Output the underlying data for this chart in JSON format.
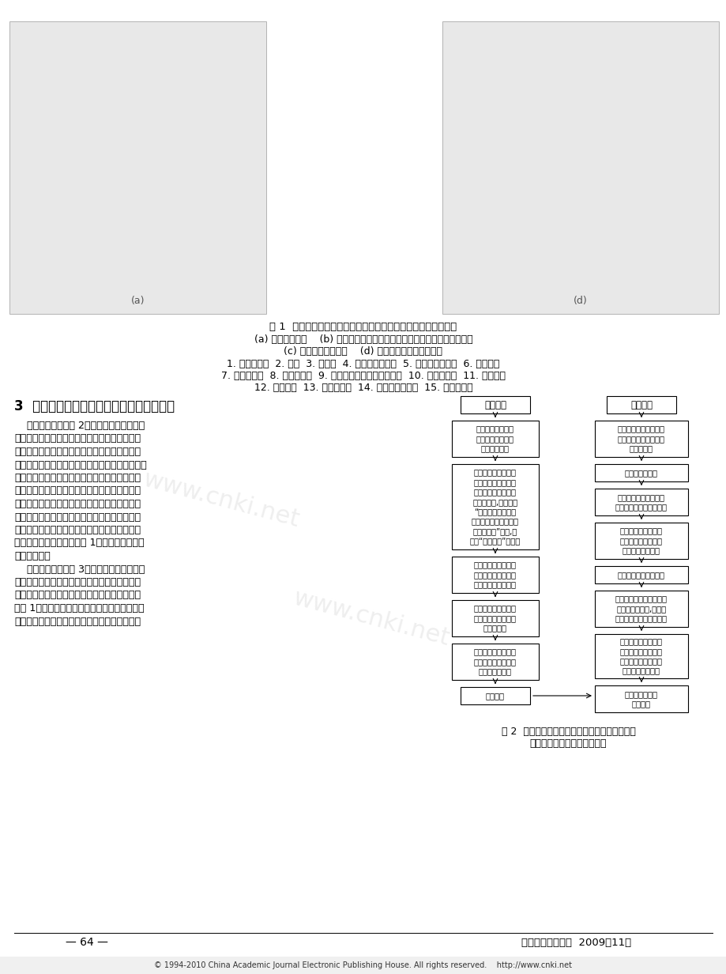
{
  "page_bg": "#ffffff",
  "title_fig1": "图 1  单侧巷道外置井道分层搞运滚道并排存放型机械式停车系统",
  "subtitle_a": "(a) 停车系统总图    (b) 托放滚道和车辆分隔定位横移取送装置侧视和俦视图",
  "subtitle_cd": "(c) 纵移搞运器侧视图    (d) 升降搞运器侧视和前视图",
  "legend_line": "1. 仓储式库架  2. 巷道  3. 存车区  4. 前车轮托放滚道  5. 后车轮托放滚道  6. 外置井道",
  "legend_line2": "7. 升降搞运器  8. 车辆出入口  9. 车辆分隔定位横移取送装置  10. 纵移搞运器  11. 停放车辆",
  "legend_line3": "12. 等待车位  13. 定位作动杆  14. 车门保护限制杆  15. 被输送车辆",
  "section3_title": "3  分层搞运滚道存放型停车系统的运行控制",
  "para1_lines": [
    "    车辆入库流程如图 2所示。待存放车辆直接",
    "驶入停车系统任一外置井道内的升降搞运器上或",
    "者相邻的等待车位上（再由升降搞运器内的车辆",
    "分隔定位横移取送装置横向拉入），升降搞运器将",
    "该存放车辆输送至停放层并通过车辆分隔定位横",
    "移取送装置交给该层的纵移搞运器，由纵移搞运",
    "器移至已确定的存车区，存车区内的车辆分隔定",
    "位横移取送装置将存放车辆横向拉到存车区托放",
    "滚道上最靠近巷道的位置停放，该存车区上原停",
    "放的其他车辆同时均被横移 1个车位（远离巷道",
    "方向）停放。",
    "    车辆出库流程如图 3所示。需取出车辆由本",
    "存车区内的车辆分隔定位横移取送装置推到纵移",
    "搞运器上，该存车区原停放的其他车辆同时均被",
    "横移 1个车位（靠近巷道方向）停放，纵移搞运",
    "器移至就近的外置井道，其升降搞运器内的车辆"
  ],
  "fig2_title": "图 2  单侧巷道外置井道分层搞运滚道并排存放型",
  "fig2_subtitle": "机械式停车系统存车运行流程",
  "page_num": "— 64 —",
  "journal": "《起重运输机械》  2009（11）",
  "copyright": "© 1994-2010 China Academic Journal Electronic Publishing House. All rights reserved.    http://www.cnki.net",
  "fc_left_top": "车辆入库",
  "fc_right_top": "存车完成",
  "fc_left_boxes": [
    [
      "系统分配最短路线\n的停放车位并显示\n车辆入口井道",
      46
    ],
    [
      "车辆驶上该井道入口\n外相邻的等待车位上\n（或者驶上入口内的\n升降搞运器,然后转到\n“升降搞运器上定位\n作动杆张开、车门保护\n限制杆升起”步骤,再\n转到“库门关闭”步骤）",
      108
    ],
    [
      "升降搞运器内的车辆\n分隔定位横移取送装\n置横向伸至等待车位",
      46
    ],
    [
      "升降搞运器上定位作\n动杆张开、车门保护\n限制杆升起",
      46
    ],
    [
      "车辆分隔定位横移取\n送装置移回将车辆拉\n入升降搞运器上",
      46
    ]
  ],
  "fc_bottom_box": "库门关闭",
  "fc_right_boxes": [
    [
      "车辆分隔定位横移取送\n装置移回将车辆拉至存\n车区上停放",
      46
    ],
    [
      "定位作动杆张开",
      22
    ],
    [
      "车辆分隔定位横移取送\n装置横向伸至纵移搞运器",
      34
    ],
    [
      "该存车区内的车辆分\n隔定位横移取送装置\n上定位作动杆收拢",
      46
    ],
    [
      "纵移搞运器移至存车区",
      22
    ],
    [
      "定位作动杆和车门保护限\n制杆收拢、降下,车辆分\n隔定位横移取送装置移回",
      46
    ],
    [
      "升降搞运器内车辆分\n隔定位横移取送装置\n将待存放车辆推至同\n层的纵移搞运器上",
      56
    ],
    [
      "升降搞运器上升\n至停放层",
      34
    ]
  ]
}
